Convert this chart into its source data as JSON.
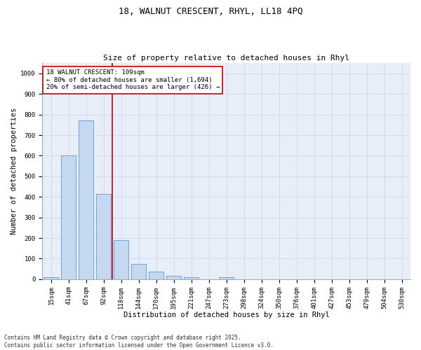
{
  "title_line1": "18, WALNUT CRESCENT, RHYL, LL18 4PQ",
  "title_line2": "Size of property relative to detached houses in Rhyl",
  "xlabel": "Distribution of detached houses by size in Rhyl",
  "ylabel": "Number of detached properties",
  "categories": [
    "15sqm",
    "41sqm",
    "67sqm",
    "92sqm",
    "118sqm",
    "144sqm",
    "170sqm",
    "195sqm",
    "221sqm",
    "247sqm",
    "273sqm",
    "298sqm",
    "324sqm",
    "350sqm",
    "376sqm",
    "401sqm",
    "427sqm",
    "453sqm",
    "479sqm",
    "504sqm",
    "530sqm"
  ],
  "values": [
    10,
    600,
    770,
    415,
    190,
    75,
    37,
    15,
    10,
    0,
    10,
    0,
    0,
    0,
    0,
    0,
    0,
    0,
    0,
    0,
    0
  ],
  "bar_color": "#c5d8f0",
  "bar_edge_color": "#5b9bd5",
  "red_line_x": 3.5,
  "annotation_text": "18 WALNUT CRESCENT: 109sqm\n← 80% of detached houses are smaller (1,694)\n20% of semi-detached houses are larger (426) →",
  "annotation_box_color": "#ffffff",
  "annotation_box_edge": "#cc0000",
  "ylim": [
    0,
    1050
  ],
  "yticks": [
    0,
    100,
    200,
    300,
    400,
    500,
    600,
    700,
    800,
    900,
    1000
  ],
  "grid_color": "#d0d8e8",
  "bg_color": "#e8eef8",
  "footer": "Contains HM Land Registry data © Crown copyright and database right 2025.\nContains public sector information licensed under the Open Government Licence v3.0.",
  "title_fontsize": 9,
  "subtitle_fontsize": 8,
  "axis_label_fontsize": 7.5,
  "tick_fontsize": 6.5,
  "annotation_fontsize": 6.5,
  "footer_fontsize": 5.5
}
